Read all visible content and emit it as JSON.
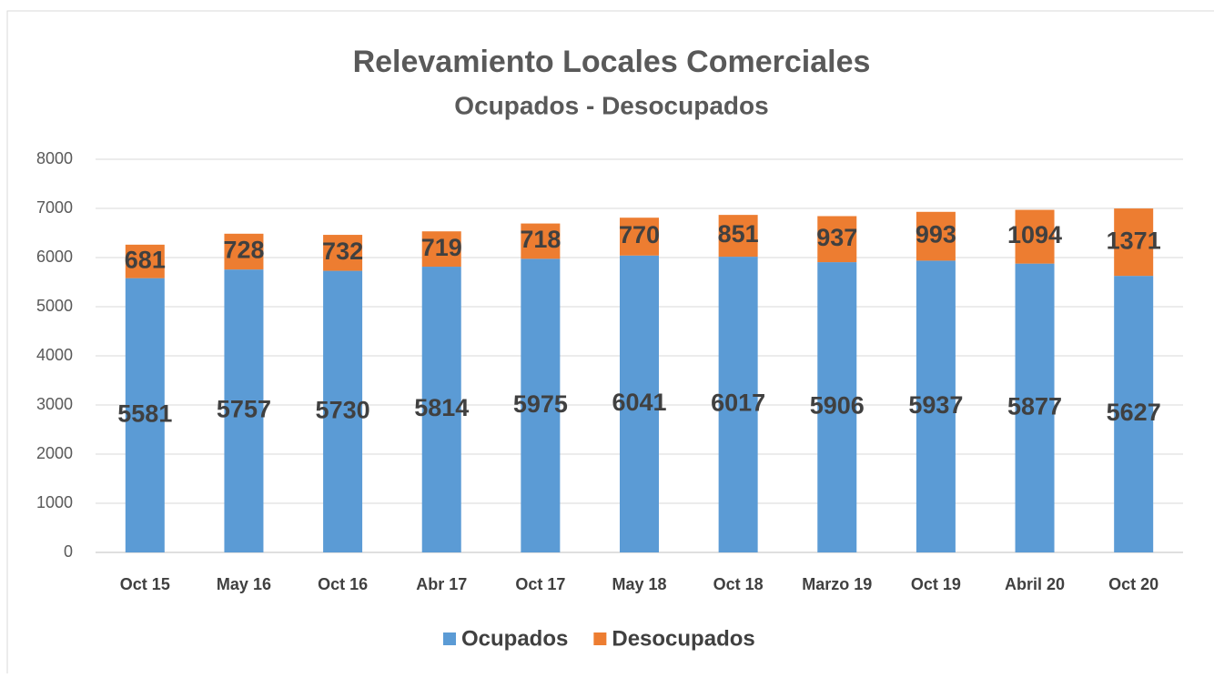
{
  "chart_data": {
    "type": "stacked_bar",
    "title": "Relevamiento Locales Comerciales",
    "subtitle": "Ocupados - Desocupados",
    "categories": [
      "Oct 15",
      "May 16",
      "Oct 16",
      "Abr 17",
      "Oct 17",
      "May 18",
      "Oct 18",
      "Marzo 19",
      "Oct 19",
      "Abril 20",
      "Oct 20"
    ],
    "series": [
      {
        "name": "Ocupados",
        "color": "#5b9bd5",
        "values": [
          5581,
          5757,
          5730,
          5814,
          5975,
          6041,
          6017,
          5906,
          5937,
          5877,
          5627
        ]
      },
      {
        "name": "Desocupados",
        "color": "#ed7d31",
        "values": [
          681,
          728,
          732,
          719,
          718,
          770,
          851,
          937,
          993,
          1094,
          1371
        ]
      }
    ],
    "ylim": [
      0,
      8000
    ],
    "yticks": [
      0,
      1000,
      2000,
      3000,
      4000,
      5000,
      6000,
      7000,
      8000
    ],
    "grid": true,
    "legend": "bottom"
  }
}
